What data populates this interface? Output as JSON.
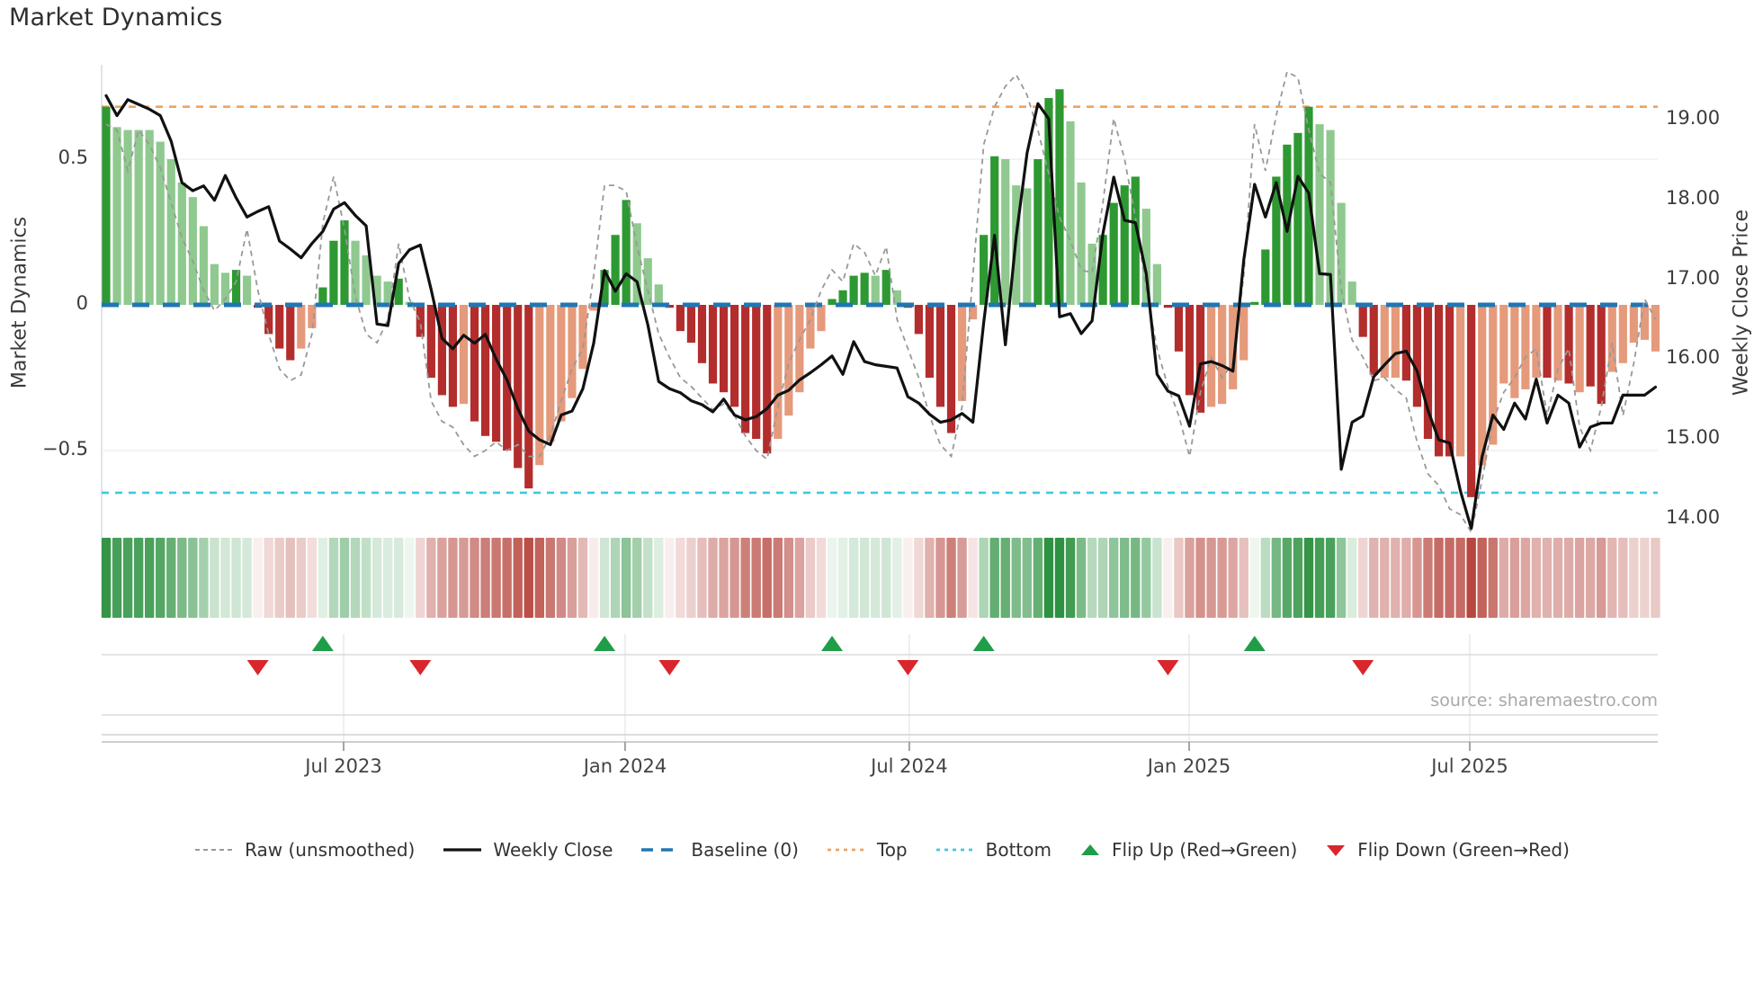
{
  "page": {
    "title": "Market Dynamics"
  },
  "chart": {
    "left_axis": {
      "label": "Market Dynamics",
      "ticks": [
        {
          "v": 0.5,
          "label": "0.5"
        },
        {
          "v": 0,
          "label": "0"
        },
        {
          "v": -0.5,
          "label": "−0.5"
        }
      ]
    },
    "right_axis": {
      "label": "Weekly Close Price",
      "ticks": [
        {
          "v": 19,
          "label": "19.00"
        },
        {
          "v": 18,
          "label": "18.00"
        },
        {
          "v": 17,
          "label": "17.00"
        },
        {
          "v": 16,
          "label": "16.00"
        },
        {
          "v": 15,
          "label": "15.00"
        },
        {
          "v": 14,
          "label": "14.00"
        }
      ]
    },
    "x_axis": {
      "ticks": [
        {
          "week": 21.92,
          "label": "Jul 2023"
        },
        {
          "week": 47.9,
          "label": "Jan 2024"
        },
        {
          "week": 74.13,
          "label": "Jul 2024"
        },
        {
          "week": 99.96,
          "label": "Jan 2025"
        },
        {
          "week": 125.86,
          "label": "Jul 2025"
        }
      ]
    },
    "source": "source: sharemaestro.com",
    "legend": [
      {
        "icon": "dash-gray",
        "label": "Raw (unsmoothed)"
      },
      {
        "icon": "solid-black",
        "label": "Weekly Close"
      },
      {
        "icon": "dash-blue",
        "label": "Baseline (0)"
      },
      {
        "icon": "dot-orange",
        "label": "Top"
      },
      {
        "icon": "dot-cyan",
        "label": "Bottom"
      },
      {
        "icon": "tri-up",
        "label": "Flip Up (Red→Green)"
      },
      {
        "icon": "tri-down",
        "label": "Flip Down (Green→Red)"
      }
    ],
    "colors": {
      "bar_pos_strong": "#2e9932",
      "bar_pos_soft": "#8fc98f",
      "bar_neg_strong": "#b32d2d",
      "bar_neg_soft": "#e59a7c",
      "close_line": "#111111",
      "raw_line": "#999999",
      "baseline": "#1f77b4",
      "top_line": "#f2a25c",
      "bottom_line": "#3ec9e6",
      "flip_up": "#1f9d48",
      "flip_down": "#d8262c",
      "heat_pos": "#2c9140",
      "heat_neg": "#b23b32"
    }
  },
  "chart_data": {
    "type": "bar",
    "x_unit": "week",
    "n_points": 144,
    "title": "Market Dynamics",
    "ylabel_left": "Market Dynamics",
    "ylabel_right": "Weekly Close Price",
    "ylim_left": [
      -0.8,
      0.824
    ],
    "ylim_right": [
      13.76,
      19.69
    ],
    "baseline": 0,
    "top_level": 0.68,
    "bottom_level": -0.645,
    "grid_values": [
      0.5,
      -0.5
    ],
    "tone": "DLLLLLLLLLLLDLDDDDLLDDDLLLLDLDDDDLDDDDDDLLLLLLDDDLLLDDDDDDDDDDLLLLLDDDDLDLDDDDDLLDDLLLDDDLLLDDDDLLDDDDLLLLDDDDDDLLLLDDLLDDDDDLDLLLLLLDLDLDDLLLL",
    "series": [
      {
        "name": "Market Dynamics (bars)",
        "type": "bar",
        "axis": "left",
        "values": [
          0.68,
          0.61,
          0.6,
          0.6,
          0.6,
          0.56,
          0.5,
          0.42,
          0.37,
          0.27,
          0.14,
          0.11,
          0.12,
          0.1,
          -0.01,
          -0.1,
          -0.15,
          -0.19,
          -0.15,
          -0.08,
          0.06,
          0.22,
          0.29,
          0.22,
          0.17,
          0.1,
          0.08,
          0.09,
          0.01,
          -0.11,
          -0.25,
          -0.31,
          -0.35,
          -0.34,
          -0.4,
          -0.45,
          -0.47,
          -0.5,
          -0.56,
          -0.63,
          -0.55,
          -0.47,
          -0.4,
          -0.32,
          -0.22,
          -0.02,
          0.12,
          0.24,
          0.36,
          0.28,
          0.16,
          0.07,
          -0.01,
          -0.09,
          -0.13,
          -0.2,
          -0.27,
          -0.3,
          -0.35,
          -0.44,
          -0.46,
          -0.51,
          -0.46,
          -0.38,
          -0.3,
          -0.15,
          -0.09,
          0.02,
          0.05,
          0.1,
          0.11,
          0.1,
          0.12,
          0.05,
          -0.01,
          -0.1,
          -0.25,
          -0.35,
          -0.44,
          -0.33,
          -0.05,
          0.24,
          0.51,
          0.5,
          0.41,
          0.4,
          0.5,
          0.71,
          0.74,
          0.63,
          0.42,
          0.21,
          0.24,
          0.35,
          0.41,
          0.44,
          0.33,
          0.14,
          -0.01,
          -0.16,
          -0.31,
          -0.37,
          -0.35,
          -0.34,
          -0.29,
          -0.19,
          0.01,
          0.19,
          0.44,
          0.55,
          0.59,
          0.68,
          0.62,
          0.6,
          0.35,
          0.08,
          -0.11,
          -0.24,
          -0.25,
          -0.25,
          -0.26,
          -0.35,
          -0.46,
          -0.52,
          -0.52,
          -0.52,
          -0.66,
          -0.55,
          -0.48,
          -0.27,
          -0.32,
          -0.29,
          -0.25,
          -0.25,
          -0.26,
          -0.27,
          -0.3,
          -0.28,
          -0.34,
          -0.23,
          -0.2,
          -0.13,
          -0.12,
          -0.16
        ]
      },
      {
        "name": "Raw (unsmoothed)",
        "type": "line",
        "axis": "left",
        "values": [
          0.62,
          0.6,
          0.46,
          0.6,
          0.55,
          0.47,
          0.35,
          0.23,
          0.15,
          0.05,
          -0.02,
          0.02,
          0.08,
          0.26,
          0.05,
          -0.1,
          -0.22,
          -0.26,
          -0.24,
          -0.1,
          0.28,
          0.44,
          0.26,
          0.03,
          -0.1,
          -0.13,
          -0.05,
          0.21,
          0.02,
          -0.06,
          -0.33,
          -0.4,
          -0.42,
          -0.48,
          -0.52,
          -0.5,
          -0.47,
          -0.5,
          -0.48,
          -0.52,
          -0.52,
          -0.45,
          -0.33,
          -0.22,
          -0.15,
          0.1,
          0.41,
          0.41,
          0.39,
          0.2,
          0.05,
          -0.1,
          -0.18,
          -0.25,
          -0.28,
          -0.32,
          -0.36,
          -0.34,
          -0.38,
          -0.45,
          -0.5,
          -0.53,
          -0.35,
          -0.2,
          -0.12,
          -0.05,
          0.05,
          0.12,
          0.08,
          0.21,
          0.18,
          0.1,
          0.2,
          -0.05,
          -0.15,
          -0.25,
          -0.38,
          -0.48,
          -0.52,
          -0.35,
          0.1,
          0.55,
          0.68,
          0.75,
          0.79,
          0.72,
          0.6,
          0.45,
          0.3,
          0.22,
          0.12,
          0.11,
          0.35,
          0.64,
          0.5,
          0.3,
          0.05,
          -0.15,
          -0.28,
          -0.38,
          -0.52,
          -0.3,
          -0.18,
          -0.25,
          -0.2,
          0.1,
          0.62,
          0.46,
          0.65,
          0.8,
          0.78,
          0.6,
          0.45,
          0.42,
          0.05,
          -0.12,
          -0.18,
          -0.26,
          -0.25,
          -0.29,
          -0.32,
          -0.47,
          -0.58,
          -0.62,
          -0.7,
          -0.72,
          -0.78,
          -0.6,
          -0.4,
          -0.3,
          -0.25,
          -0.18,
          -0.15,
          -0.38,
          -0.22,
          -0.15,
          -0.42,
          -0.5,
          -0.35,
          -0.13,
          -0.38,
          -0.2,
          0.02,
          -0.05
        ]
      },
      {
        "name": "Weekly Close",
        "type": "line",
        "axis": "right",
        "values": [
          19.3,
          19.05,
          19.25,
          19.19,
          19.13,
          19.05,
          18.73,
          18.21,
          18.11,
          18.17,
          17.99,
          18.3,
          18.02,
          17.78,
          17.85,
          17.91,
          17.48,
          17.38,
          17.27,
          17.45,
          17.6,
          17.88,
          17.96,
          17.8,
          17.67,
          16.44,
          16.42,
          17.2,
          17.37,
          17.43,
          16.87,
          16.26,
          16.13,
          16.3,
          16.2,
          16.31,
          16.0,
          15.74,
          15.38,
          15.1,
          14.99,
          14.93,
          15.3,
          15.35,
          15.63,
          16.2,
          17.11,
          16.85,
          17.07,
          16.97,
          16.43,
          15.72,
          15.63,
          15.58,
          15.48,
          15.43,
          15.34,
          15.5,
          15.3,
          15.24,
          15.28,
          15.38,
          15.55,
          15.61,
          15.74,
          15.83,
          15.93,
          16.04,
          15.81,
          16.22,
          15.97,
          15.93,
          15.91,
          15.89,
          15.53,
          15.45,
          15.31,
          15.21,
          15.24,
          15.32,
          15.21,
          16.46,
          17.55,
          16.18,
          17.54,
          18.58,
          19.2,
          19.01,
          16.53,
          16.57,
          16.32,
          16.48,
          17.57,
          18.28,
          17.74,
          17.71,
          17.07,
          15.81,
          15.6,
          15.54,
          15.16,
          15.94,
          15.97,
          15.92,
          15.85,
          17.24,
          18.19,
          17.78,
          18.21,
          17.6,
          18.29,
          18.08,
          17.07,
          17.06,
          14.62,
          15.21,
          15.29,
          15.78,
          15.93,
          16.07,
          16.1,
          15.85,
          15.36,
          14.99,
          14.95,
          14.35,
          13.88,
          14.78,
          15.3,
          15.12,
          15.45,
          15.25,
          15.75,
          15.2,
          15.55,
          15.45,
          14.9,
          15.15,
          15.2,
          15.2,
          15.55,
          15.55,
          15.55,
          15.65
        ]
      }
    ],
    "heatmap": {
      "note": "strip mirrors bar values, green=positive red=negative, intensity ~ |value|"
    },
    "markers": {
      "flip_up_weeks": [
        20,
        46,
        67,
        81,
        106
      ],
      "flip_down_weeks": [
        14,
        29,
        52,
        74,
        98,
        116
      ]
    },
    "legend_position": "bottom"
  }
}
